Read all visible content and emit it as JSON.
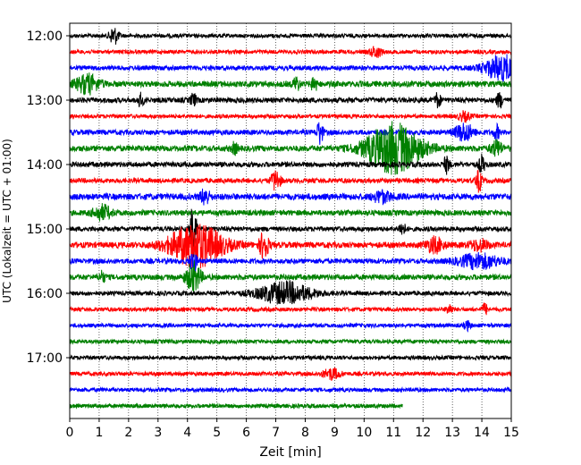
{
  "chart_data": {
    "type": "line",
    "xlabel": "Zeit  [min]",
    "ylabel": "UTC (Lokalzeit = UTC + 01:00)",
    "xlim": [
      0,
      15
    ],
    "x_ticks": [
      "0",
      "1",
      "2",
      "3",
      "4",
      "5",
      "6",
      "7",
      "8",
      "9",
      "10",
      "11",
      "12",
      "13",
      "14",
      "15"
    ],
    "y_ticks": [
      "12:00",
      "13:00",
      "14:00",
      "15:00",
      "16:00",
      "17:00"
    ],
    "y_tick_hours": [
      12,
      13,
      14,
      15,
      16,
      17
    ],
    "grid": "vertical dotted",
    "colors": [
      "#000000",
      "#ff0000",
      "#0000ff",
      "#008000"
    ],
    "traces": [
      {
        "start": "12:00",
        "color": "#000000",
        "noise": 1.0,
        "events": [
          {
            "t": 1.5,
            "amp": 10,
            "width": 0.15
          }
        ]
      },
      {
        "start": "12:15",
        "color": "#ff0000",
        "noise": 1.0,
        "events": [
          {
            "t": 10.4,
            "amp": 6,
            "width": 0.2
          }
        ]
      },
      {
        "start": "12:30",
        "color": "#0000ff",
        "noise": 1.2,
        "events": [
          {
            "t": 14.7,
            "amp": 14,
            "width": 0.6
          }
        ]
      },
      {
        "start": "12:45",
        "color": "#008000",
        "noise": 1.5,
        "events": [
          {
            "t": 0.6,
            "amp": 10,
            "width": 0.4
          },
          {
            "t": 7.7,
            "amp": 8,
            "width": 0.1
          },
          {
            "t": 8.3,
            "amp": 8,
            "width": 0.1
          }
        ]
      },
      {
        "start": "13:00",
        "color": "#000000",
        "noise": 1.3,
        "events": [
          {
            "t": 2.4,
            "amp": 7,
            "width": 0.1
          },
          {
            "t": 4.2,
            "amp": 7,
            "width": 0.1
          },
          {
            "t": 12.5,
            "amp": 8,
            "width": 0.1
          },
          {
            "t": 14.6,
            "amp": 8,
            "width": 0.1
          }
        ]
      },
      {
        "start": "13:15",
        "color": "#ff0000",
        "noise": 1.0,
        "events": [
          {
            "t": 13.4,
            "amp": 5,
            "width": 0.2
          }
        ]
      },
      {
        "start": "13:30",
        "color": "#0000ff",
        "noise": 1.3,
        "events": [
          {
            "t": 8.5,
            "amp": 14,
            "width": 0.1
          },
          {
            "t": 13.4,
            "amp": 10,
            "width": 0.3
          },
          {
            "t": 14.5,
            "amp": 8,
            "width": 0.1
          }
        ]
      },
      {
        "start": "13:45",
        "color": "#008000",
        "noise": 1.5,
        "events": [
          {
            "t": 11.0,
            "amp": 28,
            "width": 0.9
          },
          {
            "t": 5.6,
            "amp": 6,
            "width": 0.1
          },
          {
            "t": 14.5,
            "amp": 8,
            "width": 0.2
          }
        ]
      },
      {
        "start": "14:00",
        "color": "#000000",
        "noise": 1.3,
        "events": [
          {
            "t": 12.8,
            "amp": 9,
            "width": 0.1
          },
          {
            "t": 14.0,
            "amp": 10,
            "width": 0.1
          }
        ]
      },
      {
        "start": "14:15",
        "color": "#ff0000",
        "noise": 1.2,
        "events": [
          {
            "t": 7.0,
            "amp": 12,
            "width": 0.15
          },
          {
            "t": 13.9,
            "amp": 12,
            "width": 0.1
          }
        ]
      },
      {
        "start": "14:30",
        "color": "#0000ff",
        "noise": 1.6,
        "events": [
          {
            "t": 4.6,
            "amp": 9,
            "width": 0.15
          },
          {
            "t": 10.6,
            "amp": 6,
            "width": 0.3
          }
        ]
      },
      {
        "start": "14:45",
        "color": "#008000",
        "noise": 1.4,
        "events": [
          {
            "t": 1.1,
            "amp": 8,
            "width": 0.3
          }
        ]
      },
      {
        "start": "15:00",
        "color": "#000000",
        "noise": 1.2,
        "events": [
          {
            "t": 11.3,
            "amp": 8,
            "width": 0.1
          },
          {
            "t": 4.2,
            "amp": 30,
            "width": 0.1
          }
        ]
      },
      {
        "start": "15:15",
        "color": "#ff0000",
        "noise": 1.5,
        "events": [
          {
            "t": 4.3,
            "amp": 24,
            "width": 0.9
          },
          {
            "t": 6.6,
            "amp": 16,
            "width": 0.15
          },
          {
            "t": 12.4,
            "amp": 8,
            "width": 0.3
          },
          {
            "t": 13.9,
            "amp": 6,
            "width": 0.3
          }
        ]
      },
      {
        "start": "15:30",
        "color": "#0000ff",
        "noise": 1.3,
        "events": [
          {
            "t": 13.9,
            "amp": 8,
            "width": 0.7
          },
          {
            "t": 4.2,
            "amp": 16,
            "width": 0.1
          }
        ]
      },
      {
        "start": "15:45",
        "color": "#008000",
        "noise": 1.4,
        "events": [
          {
            "t": 4.2,
            "amp": 16,
            "width": 0.25
          },
          {
            "t": 1.1,
            "amp": 6,
            "width": 0.1
          }
        ]
      },
      {
        "start": "16:00",
        "color": "#000000",
        "noise": 1.1,
        "events": [
          {
            "t": 7.3,
            "amp": 12,
            "width": 0.9
          }
        ]
      },
      {
        "start": "16:15",
        "color": "#ff0000",
        "noise": 1.0,
        "events": [
          {
            "t": 12.9,
            "amp": 6,
            "width": 0.1
          },
          {
            "t": 14.1,
            "amp": 6,
            "width": 0.1
          }
        ]
      },
      {
        "start": "16:30",
        "color": "#0000ff",
        "noise": 1.0,
        "events": [
          {
            "t": 13.5,
            "amp": 5,
            "width": 0.1
          }
        ]
      },
      {
        "start": "16:45",
        "color": "#008000",
        "noise": 1.0,
        "events": []
      },
      {
        "start": "17:00",
        "color": "#000000",
        "noise": 1.0,
        "events": []
      },
      {
        "start": "17:15",
        "color": "#ff0000",
        "noise": 1.0,
        "events": [
          {
            "t": 8.9,
            "amp": 6,
            "width": 0.3
          }
        ]
      },
      {
        "start": "17:30",
        "color": "#0000ff",
        "noise": 1.0,
        "events": []
      },
      {
        "start": "17:45",
        "color": "#008000",
        "noise": 1.0,
        "events": [],
        "end_min": 11.3
      }
    ]
  }
}
